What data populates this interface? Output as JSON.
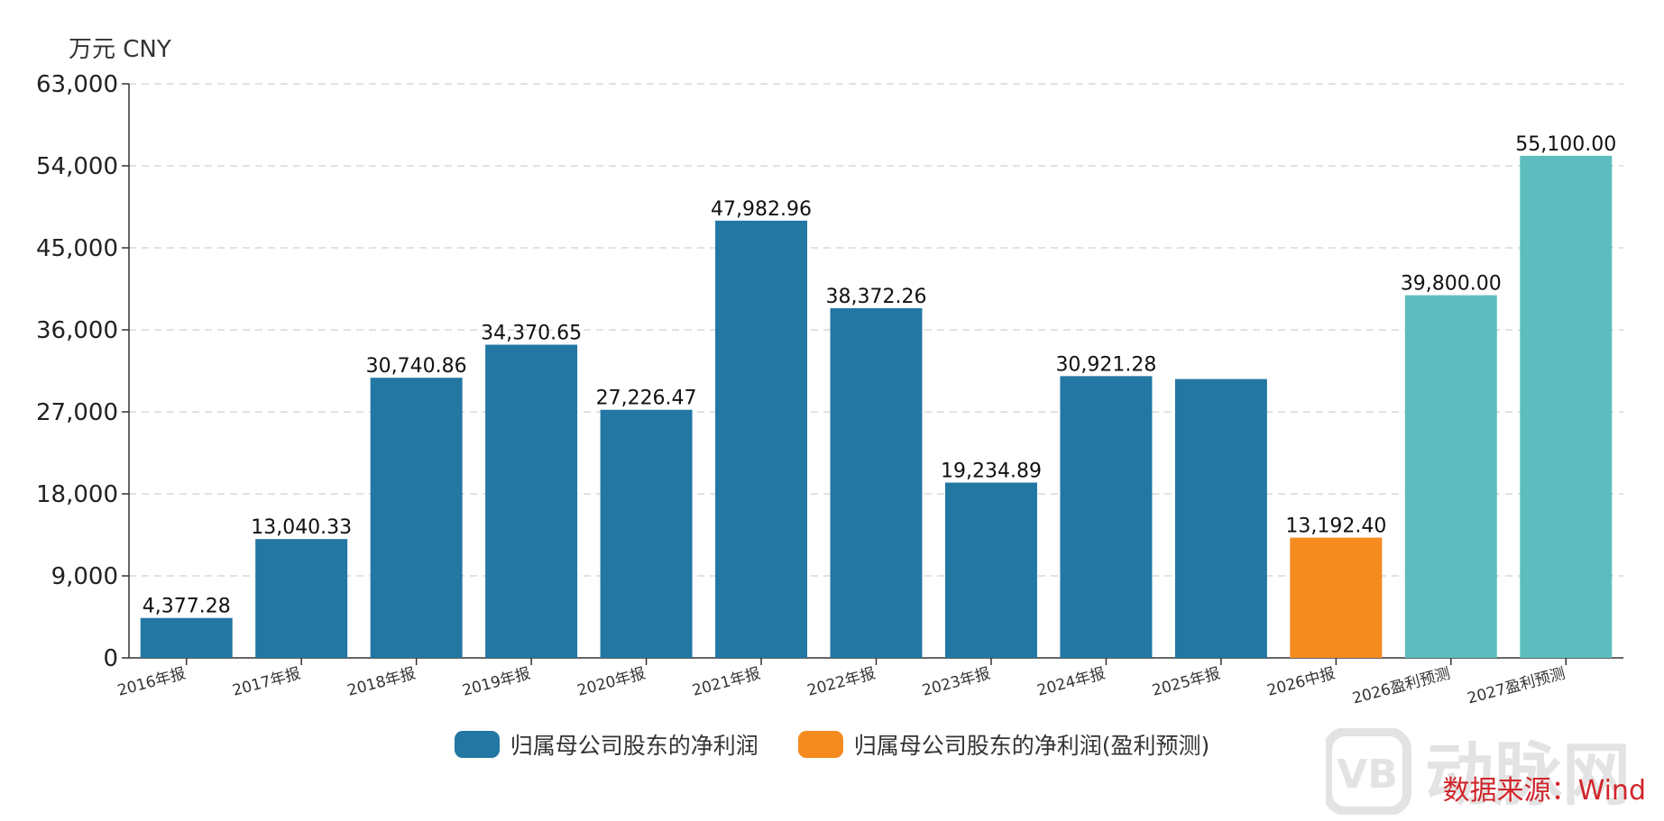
{
  "unit": "万元  CNY",
  "legend": {
    "actual": "归属母公司股东的净利润",
    "forecast": "归属母公司股东的净利润(盈利预测)"
  },
  "watermark": {
    "mark": "VB",
    "text": "动脉网"
  },
  "source": "数据来源：Wind",
  "colors": {
    "actual": "#2277a3",
    "interim": "#f58a1f",
    "forecast": "#5dbdbe",
    "grid": "#d9d9d9",
    "axis": "#333333",
    "watermark": "#e3e3e3",
    "source": "#d0252b"
  },
  "chart_data": {
    "type": "bar",
    "ylim": [
      0,
      63000
    ],
    "yticks": [
      0,
      9000,
      18000,
      27000,
      36000,
      45000,
      54000,
      63000
    ],
    "ytick_labels": [
      "0",
      "9,000",
      "18,000",
      "27,000",
      "36,000",
      "45,000",
      "54,000",
      "63,000"
    ],
    "ylabel": "万元  CNY",
    "categories": [
      "2016年报",
      "2017年报",
      "2018年报",
      "2019年报",
      "2020年报",
      "2021年报",
      "2022年报",
      "2023年报",
      "2024年报",
      "2025年报",
      "2026中报",
      "2026盈利预测",
      "2027盈利预测"
    ],
    "values": [
      4377.28,
      13040.33,
      30740.86,
      34370.65,
      27226.47,
      47982.96,
      38372.26,
      19234.89,
      30921.28,
      30600,
      13192.4,
      39800.0,
      55100.0
    ],
    "value_labels": [
      "4,377.28",
      "13,040.33",
      "30,740.86",
      "34,370.65",
      "27,226.47",
      "47,982.96",
      "38,372.26",
      "19,234.89",
      "30,921.28",
      "",
      "13,192.40",
      "39,800.00",
      "55,100.00"
    ],
    "bar_kind": [
      "actual",
      "actual",
      "actual",
      "actual",
      "actual",
      "actual",
      "actual",
      "actual",
      "actual",
      "actual",
      "interim",
      "forecast",
      "forecast"
    ],
    "grid": true,
    "legend_position": "bottom"
  }
}
